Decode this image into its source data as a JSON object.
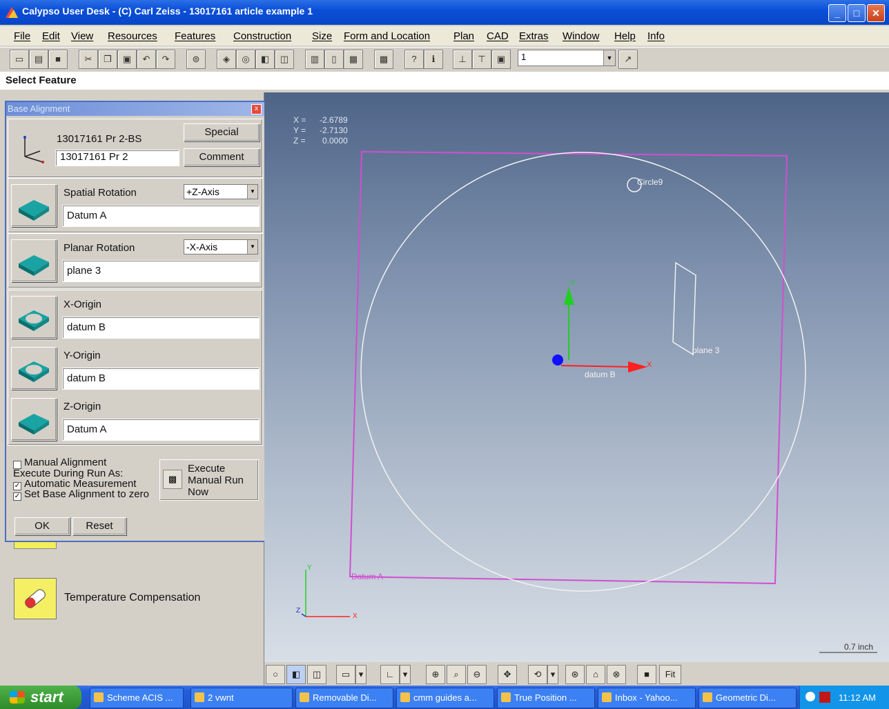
{
  "window": {
    "title": "Calypso User Desk - (C) Carl Zeiss - 13017161 article example 1",
    "minimize": "_",
    "maximize": "□",
    "close": "✕"
  },
  "menu": [
    "File",
    "Edit",
    "View",
    "Resources",
    "Features",
    "Construction",
    "Size",
    "Form and Location",
    "Plan",
    "CAD",
    "Extras",
    "Window",
    "Help",
    "Info"
  ],
  "toolbar": {
    "combo_value": "1",
    "combo_arrow": "▼"
  },
  "status": {
    "select_feature": "Select Feature"
  },
  "dialog": {
    "title": "Base Alignment",
    "close": "x",
    "alignment_name": "13017161 Pr 2-BS",
    "alignment_field": "13017161 Pr 2",
    "special_button": "Special",
    "comment_button": "Comment",
    "spatial_rotation": {
      "label": "Spatial Rotation",
      "axis": "+Z-Axis",
      "feature": "Datum A"
    },
    "planar_rotation": {
      "label": "Planar Rotation",
      "axis": "-X-Axis",
      "feature": "plane 3"
    },
    "x_origin": {
      "label": "X-Origin",
      "feature": "datum B"
    },
    "y_origin": {
      "label": "Y-Origin",
      "feature": "datum B"
    },
    "z_origin": {
      "label": "Z-Origin",
      "feature": "Datum A"
    },
    "manual_alignment": "Manual Alignment",
    "execute_during_run": "Execute During Run As:",
    "automatic_measurement": "Automatic Measurement",
    "set_base_zero": "Set Base Alignment to zero",
    "execute_manual": [
      "Execute",
      "Manual Run",
      "Now"
    ],
    "ok_button": "OK",
    "reset_button": "Reset"
  },
  "left_panel": {
    "temperature_compensation": "Temperature Compensation"
  },
  "viewport": {
    "coords": {
      "x_label": "X =",
      "x": "-2.6789",
      "y_label": "Y =",
      "y": "-2.7130",
      "z_label": "Z =",
      "z": "0.0000"
    },
    "labels": {
      "circle": "Circle9",
      "plane": "plane 3",
      "datum_b": "datum B",
      "datum_a": "Datum A",
      "axis_x": "X",
      "axis_y": "Y",
      "axis_z": "Z"
    },
    "scale": "0.7 inch",
    "fit_button": "Fit",
    "colors": {
      "square": "#d04fd0",
      "circle": "#f2f2f2",
      "x_axis": "#ff2020",
      "y_axis": "#1fd020",
      "origin": "#1010ff"
    }
  },
  "taskbar": {
    "start": "start",
    "items": [
      "Scheme ACIS ...",
      "2 vwnt",
      "Removable Di...",
      "cmm guides a...",
      "True Position ...",
      "Inbox - Yahoo...",
      "Geometric Di..."
    ],
    "clock": "11:12 AM"
  }
}
